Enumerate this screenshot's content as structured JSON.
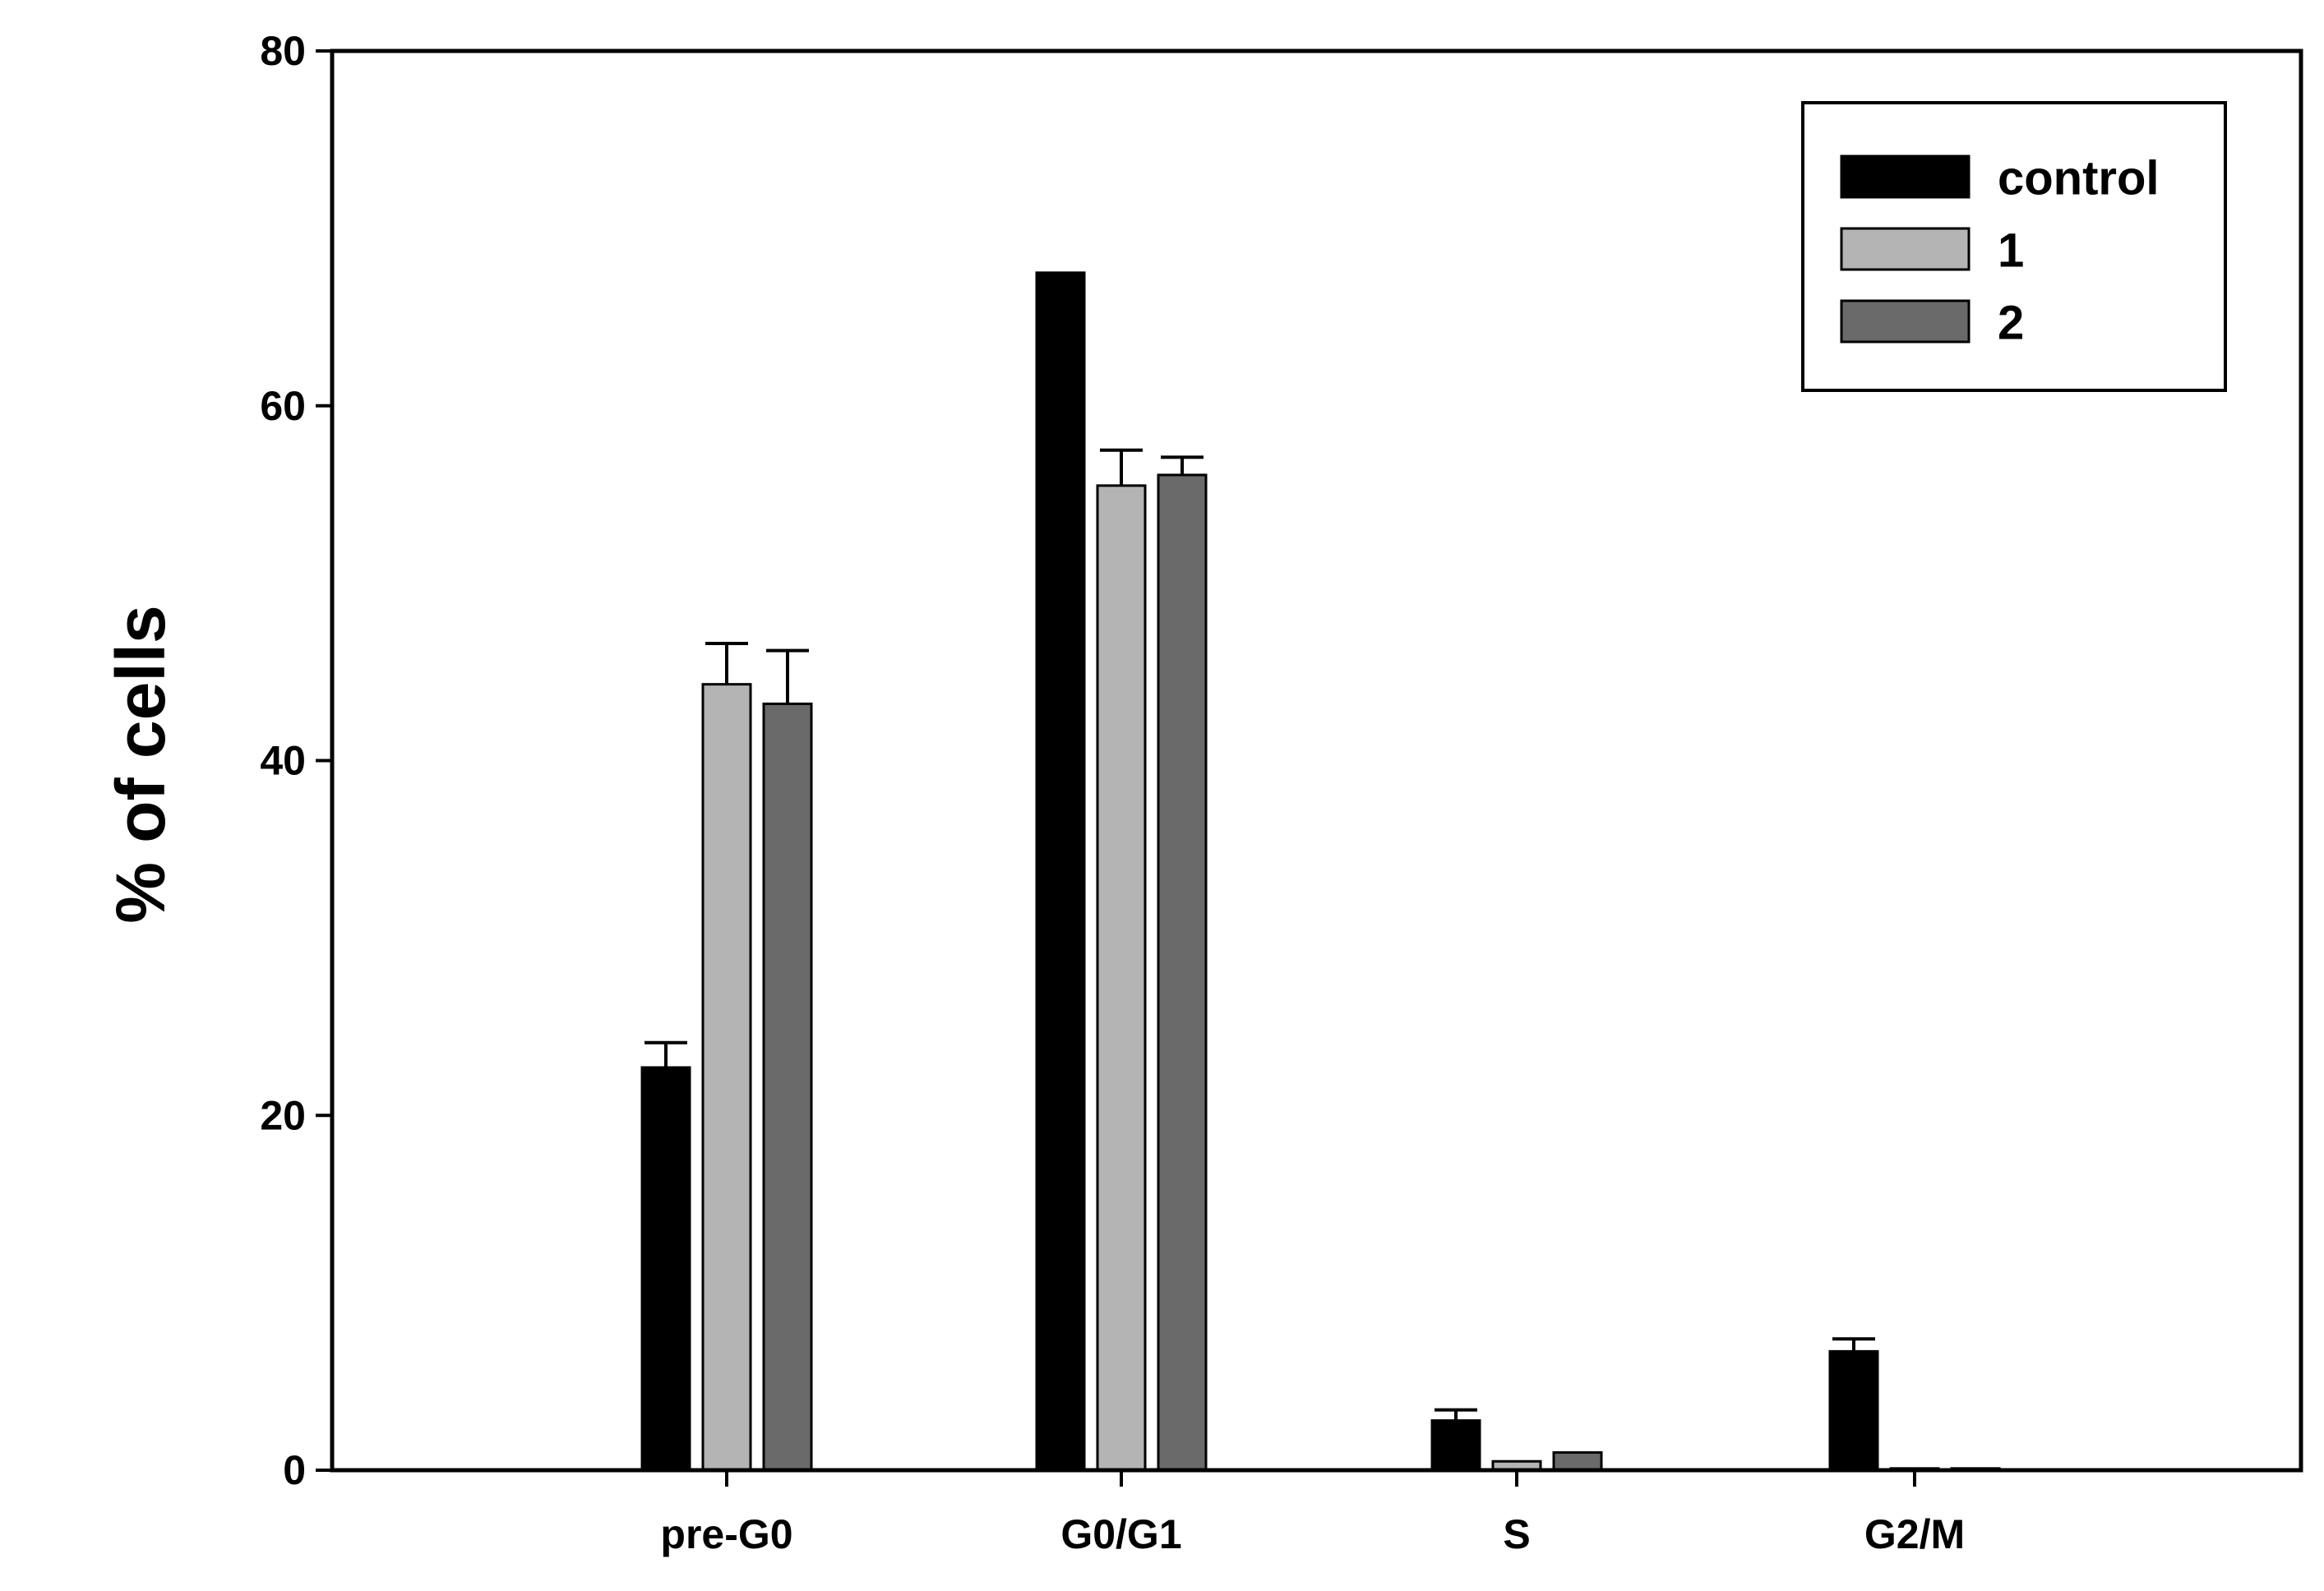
{
  "chart_data": {
    "type": "bar",
    "title": "",
    "xlabel": "",
    "ylabel": "% of cells",
    "ylim": [
      0,
      80
    ],
    "yticks": [
      "0",
      "20",
      "40",
      "60",
      "80"
    ],
    "ytick_values": [
      0,
      20,
      40,
      60,
      80
    ],
    "categories": [
      "pre-G0",
      "G0/G1",
      "S",
      "G2/M"
    ],
    "grid": false,
    "legend_position": "top-right",
    "series": [
      {
        "name": "control",
        "color": "#000000",
        "values": [
          22.7,
          67.5,
          2.8,
          6.7
        ],
        "errors": [
          1.4,
          0.0,
          0.6,
          0.7
        ]
      },
      {
        "name": "1",
        "color": "#b4b4b4",
        "values": [
          44.3,
          55.5,
          0.5,
          0.1
        ],
        "errors": [
          2.3,
          2.0,
          0.0,
          0.0
        ]
      },
      {
        "name": "2",
        "color": "#6a6a6a",
        "values": [
          43.2,
          56.1,
          1.0,
          0.1
        ],
        "errors": [
          3.0,
          1.0,
          0.0,
          0.0
        ]
      }
    ]
  }
}
